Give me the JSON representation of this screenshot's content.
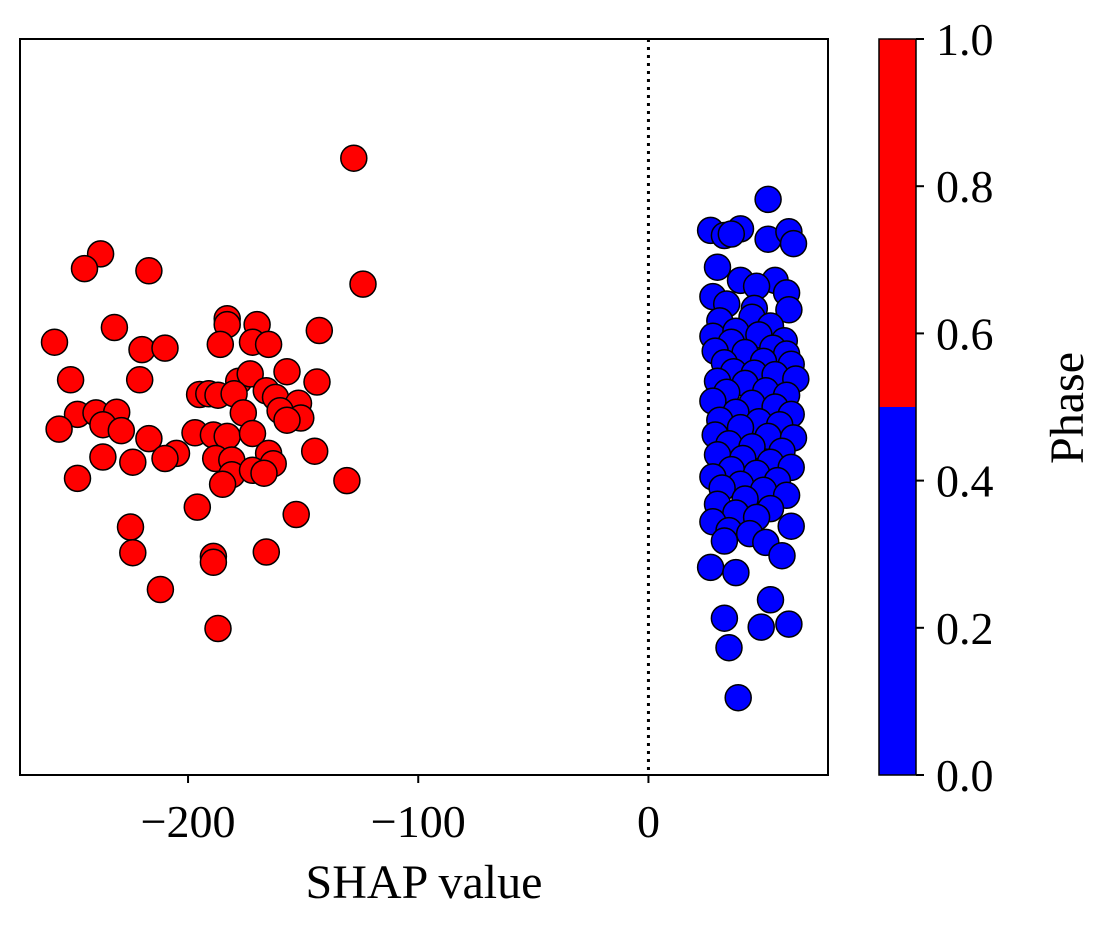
{
  "chart_data": {
    "type": "scatter",
    "title": "",
    "xlabel": "SHAP value",
    "ylabel": "",
    "xlim": [
      -273,
      78
    ],
    "ylim": [
      0,
      1
    ],
    "x_ticks": [
      -200,
      -100,
      0
    ],
    "x_tick_labels": [
      "−200",
      "−100",
      "0"
    ],
    "y_axis_visible": false,
    "reference_line": {
      "x": 0,
      "style": "dotted",
      "color": "#000000"
    },
    "colorbar": {
      "label": "Phase",
      "range": [
        0,
        1
      ],
      "ticks": [
        0.0,
        0.2,
        0.4,
        0.6,
        0.8,
        1.0
      ],
      "tick_labels": [
        "0.0",
        "0.2",
        "0.4",
        "0.6",
        "0.8",
        "1.0"
      ],
      "segments": [
        {
          "from": 0.0,
          "to": 0.5,
          "color": "#0000ff"
        },
        {
          "from": 0.5,
          "to": 1.0,
          "color": "#ff0000"
        }
      ]
    },
    "marker_edge_color": "#000000",
    "series": [
      {
        "phase": 1,
        "color": "#ff0000",
        "points": [
          [
            -128,
            0.838
          ],
          [
            -124,
            0.667
          ],
          [
            -238,
            0.708
          ],
          [
            -245,
            0.688
          ],
          [
            -217,
            0.685
          ],
          [
            -258,
            0.588
          ],
          [
            -232,
            0.608
          ],
          [
            -220,
            0.578
          ],
          [
            -210,
            0.58
          ],
          [
            -183,
            0.62
          ],
          [
            -183,
            0.612
          ],
          [
            -170,
            0.612
          ],
          [
            -143,
            0.604
          ],
          [
            -186,
            0.585
          ],
          [
            -172,
            0.588
          ],
          [
            -165,
            0.585
          ],
          [
            -251,
            0.537
          ],
          [
            -221,
            0.537
          ],
          [
            -178,
            0.535
          ],
          [
            -173,
            0.545
          ],
          [
            -157,
            0.548
          ],
          [
            -144,
            0.534
          ],
          [
            -195,
            0.517
          ],
          [
            -191,
            0.518
          ],
          [
            -187,
            0.516
          ],
          [
            -180,
            0.518
          ],
          [
            -166,
            0.522
          ],
          [
            -162,
            0.513
          ],
          [
            -152,
            0.505
          ],
          [
            -248,
            0.49
          ],
          [
            -240,
            0.492
          ],
          [
            -231,
            0.493
          ],
          [
            -176,
            0.492
          ],
          [
            -160,
            0.495
          ],
          [
            -151,
            0.485
          ],
          [
            -237,
            0.476
          ],
          [
            -229,
            0.468
          ],
          [
            -256,
            0.47
          ],
          [
            -197,
            0.465
          ],
          [
            -189,
            0.462
          ],
          [
            -183,
            0.46
          ],
          [
            -172,
            0.464
          ],
          [
            -157,
            0.482
          ],
          [
            -217,
            0.457
          ],
          [
            -205,
            0.437
          ],
          [
            -145,
            0.44
          ],
          [
            -237,
            0.432
          ],
          [
            -188,
            0.43
          ],
          [
            -181,
            0.428
          ],
          [
            -165,
            0.437
          ],
          [
            -163,
            0.423
          ],
          [
            -224,
            0.425
          ],
          [
            -210,
            0.43
          ],
          [
            -181,
            0.408
          ],
          [
            -172,
            0.414
          ],
          [
            -167,
            0.41
          ],
          [
            -248,
            0.403
          ],
          [
            -131,
            0.4
          ],
          [
            -185,
            0.395
          ],
          [
            -196,
            0.364
          ],
          [
            -153,
            0.354
          ],
          [
            -225,
            0.337
          ],
          [
            -224,
            0.302
          ],
          [
            -189,
            0.297
          ],
          [
            -189,
            0.289
          ],
          [
            -166,
            0.303
          ],
          [
            -212,
            0.252
          ],
          [
            -187,
            0.199
          ]
        ]
      },
      {
        "phase": 0,
        "color": "#0000ff",
        "points": [
          [
            52,
            0.782
          ],
          [
            27,
            0.74
          ],
          [
            40,
            0.742
          ],
          [
            33,
            0.733
          ],
          [
            36,
            0.735
          ],
          [
            52,
            0.728
          ],
          [
            61,
            0.738
          ],
          [
            63,
            0.722
          ],
          [
            30,
            0.69
          ],
          [
            40,
            0.672
          ],
          [
            55,
            0.672
          ],
          [
            28,
            0.65
          ],
          [
            47,
            0.664
          ],
          [
            60,
            0.655
          ],
          [
            34,
            0.64
          ],
          [
            46,
            0.634
          ],
          [
            61,
            0.632
          ],
          [
            31,
            0.617
          ],
          [
            45,
            0.622
          ],
          [
            53,
            0.61
          ],
          [
            28,
            0.596
          ],
          [
            38,
            0.603
          ],
          [
            48,
            0.598
          ],
          [
            59,
            0.59
          ],
          [
            36,
            0.588
          ],
          [
            54,
            0.58
          ],
          [
            29,
            0.576
          ],
          [
            42,
            0.574
          ],
          [
            60,
            0.572
          ],
          [
            33,
            0.56
          ],
          [
            50,
            0.562
          ],
          [
            62,
            0.558
          ],
          [
            37,
            0.548
          ],
          [
            46,
            0.546
          ],
          [
            55,
            0.544
          ],
          [
            30,
            0.535
          ],
          [
            42,
            0.532
          ],
          [
            64,
            0.538
          ],
          [
            34,
            0.52
          ],
          [
            51,
            0.522
          ],
          [
            60,
            0.516
          ],
          [
            28,
            0.508
          ],
          [
            45,
            0.505
          ],
          [
            55,
            0.5
          ],
          [
            38,
            0.493
          ],
          [
            62,
            0.49
          ],
          [
            31,
            0.482
          ],
          [
            48,
            0.48
          ],
          [
            57,
            0.476
          ],
          [
            40,
            0.472
          ],
          [
            29,
            0.462
          ],
          [
            52,
            0.46
          ],
          [
            63,
            0.458
          ],
          [
            35,
            0.45
          ],
          [
            45,
            0.446
          ],
          [
            58,
            0.44
          ],
          [
            30,
            0.435
          ],
          [
            41,
            0.43
          ],
          [
            53,
            0.425
          ],
          [
            62,
            0.418
          ],
          [
            36,
            0.415
          ],
          [
            47,
            0.41
          ],
          [
            28,
            0.405
          ],
          [
            56,
            0.4
          ],
          [
            40,
            0.395
          ],
          [
            32,
            0.39
          ],
          [
            50,
            0.387
          ],
          [
            60,
            0.38
          ],
          [
            42,
            0.375
          ],
          [
            30,
            0.368
          ],
          [
            53,
            0.362
          ],
          [
            38,
            0.356
          ],
          [
            47,
            0.35
          ],
          [
            28,
            0.344
          ],
          [
            62,
            0.338
          ],
          [
            35,
            0.332
          ],
          [
            44,
            0.328
          ],
          [
            33,
            0.318
          ],
          [
            51,
            0.316
          ],
          [
            58,
            0.298
          ],
          [
            27,
            0.282
          ],
          [
            38,
            0.275
          ],
          [
            53,
            0.238
          ],
          [
            33,
            0.213
          ],
          [
            49,
            0.201
          ],
          [
            61,
            0.205
          ],
          [
            35,
            0.173
          ],
          [
            39,
            0.105
          ]
        ]
      }
    ]
  }
}
